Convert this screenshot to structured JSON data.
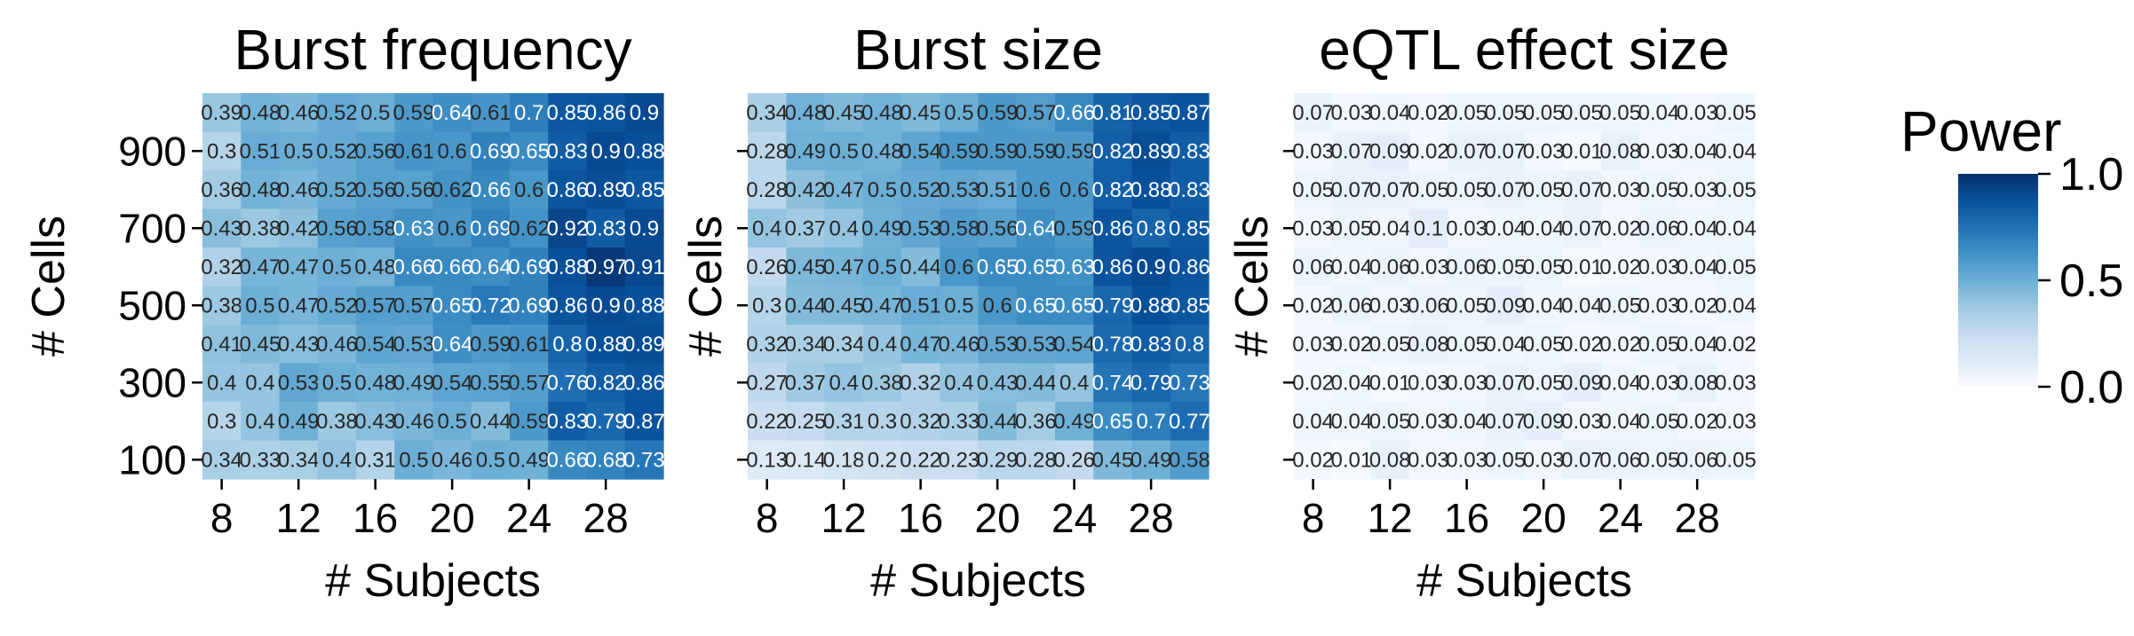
{
  "colorbar": {
    "title": "Power",
    "ticks": [
      {
        "value": 1.0,
        "label": "1.0"
      },
      {
        "value": 0.5,
        "label": "0.5"
      },
      {
        "value": 0.0,
        "label": "0.0"
      }
    ],
    "range": [
      0,
      1
    ],
    "colormap": [
      "#f7fbff",
      "#deebf7",
      "#c6dbef",
      "#9ecae1",
      "#6baed6",
      "#4292c6",
      "#2171b5",
      "#08519c",
      "#08306b"
    ]
  },
  "chart_data": [
    {
      "type": "heatmap",
      "title": "Burst frequency",
      "xlabel": "# Subjects",
      "ylabel": "# Cells",
      "x": [
        8,
        10,
        12,
        14,
        16,
        18,
        20,
        22,
        24,
        26,
        28,
        30
      ],
      "x_tick_labels": [
        "8",
        "12",
        "16",
        "20",
        "24",
        "28"
      ],
      "y": [
        1000,
        900,
        800,
        700,
        600,
        500,
        400,
        300,
        200,
        100
      ],
      "y_tick_labels": [
        "900",
        "700",
        "500",
        "300",
        "100"
      ],
      "values": [
        [
          0.39,
          0.48,
          0.46,
          0.52,
          0.5,
          0.59,
          0.64,
          0.61,
          0.7,
          0.85,
          0.86,
          0.9
        ],
        [
          0.3,
          0.51,
          0.5,
          0.52,
          0.56,
          0.61,
          0.6,
          0.69,
          0.65,
          0.83,
          0.9,
          0.88
        ],
        [
          0.36,
          0.48,
          0.46,
          0.52,
          0.56,
          0.56,
          0.62,
          0.66,
          0.6,
          0.86,
          0.89,
          0.85
        ],
        [
          0.43,
          0.38,
          0.42,
          0.56,
          0.58,
          0.63,
          0.6,
          0.69,
          0.62,
          0.92,
          0.83,
          0.9
        ],
        [
          0.32,
          0.47,
          0.47,
          0.5,
          0.48,
          0.66,
          0.66,
          0.64,
          0.69,
          0.88,
          0.97,
          0.91
        ],
        [
          0.38,
          0.5,
          0.47,
          0.52,
          0.57,
          0.57,
          0.65,
          0.72,
          0.69,
          0.86,
          0.9,
          0.88
        ],
        [
          0.41,
          0.45,
          0.43,
          0.46,
          0.54,
          0.53,
          0.64,
          0.59,
          0.61,
          0.8,
          0.88,
          0.89
        ],
        [
          0.4,
          0.4,
          0.53,
          0.5,
          0.48,
          0.49,
          0.54,
          0.55,
          0.57,
          0.76,
          0.82,
          0.86
        ],
        [
          0.3,
          0.4,
          0.49,
          0.38,
          0.43,
          0.46,
          0.5,
          0.44,
          0.59,
          0.83,
          0.79,
          0.87
        ],
        [
          0.34,
          0.33,
          0.34,
          0.4,
          0.31,
          0.5,
          0.46,
          0.5,
          0.49,
          0.66,
          0.68,
          0.73
        ]
      ],
      "value_labels": [
        [
          "0.39",
          "0.48",
          "0.46",
          "0.52",
          "0.5",
          "0.59",
          "0.64",
          "0.61",
          "0.7",
          "0.85",
          "0.86",
          "0.9"
        ],
        [
          "0.3",
          "0.51",
          "0.5",
          "0.52",
          "0.56",
          "0.61",
          "0.6",
          "0.69",
          "0.65",
          "0.83",
          "0.9",
          "0.88"
        ],
        [
          "0.36",
          "0.48",
          "0.46",
          "0.52",
          "0.56",
          "0.56",
          "0.62",
          "0.66",
          "0.6",
          "0.86",
          "0.89",
          "0.85"
        ],
        [
          "0.43",
          "0.38",
          "0.42",
          "0.56",
          "0.58",
          "0.63",
          "0.6",
          "0.69",
          "0.62",
          "0.92",
          "0.83",
          "0.9"
        ],
        [
          "0.32",
          "0.47",
          "0.47",
          "0.5",
          "0.48",
          "0.66",
          "0.66",
          "0.64",
          "0.69",
          "0.88",
          "0.97",
          "0.91"
        ],
        [
          "0.38",
          "0.5",
          "0.47",
          "0.52",
          "0.57",
          "0.57",
          "0.65",
          "0.72",
          "0.69",
          "0.86",
          "0.9",
          "0.88"
        ],
        [
          "0.41",
          "0.45",
          "0.43",
          "0.46",
          "0.54",
          "0.53",
          "0.64",
          "0.59",
          "0.61",
          "0.8",
          "0.88",
          "0.89"
        ],
        [
          "0.4",
          "0.4",
          "0.53",
          "0.5",
          "0.48",
          "0.49",
          "0.54",
          "0.55",
          "0.57",
          "0.76",
          "0.82",
          "0.86"
        ],
        [
          "0.3",
          "0.4",
          "0.49",
          "0.38",
          "0.43",
          "0.46",
          "0.5",
          "0.44",
          "0.59",
          "0.83",
          "0.79",
          "0.87"
        ],
        [
          "0.34",
          "0.33",
          "0.34",
          "0.4",
          "0.31",
          "0.5",
          "0.46",
          "0.5",
          "0.49",
          "0.66",
          "0.68",
          "0.73"
        ]
      ]
    },
    {
      "type": "heatmap",
      "title": "Burst size",
      "xlabel": "# Subjects",
      "ylabel": "# Cells",
      "x": [
        8,
        10,
        12,
        14,
        16,
        18,
        20,
        22,
        24,
        26,
        28,
        30
      ],
      "x_tick_labels": [
        "8",
        "12",
        "16",
        "20",
        "24",
        "28"
      ],
      "y": [
        1000,
        900,
        800,
        700,
        600,
        500,
        400,
        300,
        200,
        100
      ],
      "y_tick_labels": [
        "900",
        "700",
        "500",
        "300",
        "100"
      ],
      "values": [
        [
          0.34,
          0.48,
          0.45,
          0.48,
          0.45,
          0.5,
          0.59,
          0.57,
          0.66,
          0.81,
          0.85,
          0.87
        ],
        [
          0.28,
          0.49,
          0.5,
          0.48,
          0.54,
          0.59,
          0.59,
          0.59,
          0.59,
          0.82,
          0.89,
          0.83
        ],
        [
          0.28,
          0.42,
          0.47,
          0.5,
          0.52,
          0.53,
          0.51,
          0.6,
          0.6,
          0.82,
          0.88,
          0.83
        ],
        [
          0.4,
          0.37,
          0.4,
          0.49,
          0.53,
          0.58,
          0.56,
          0.64,
          0.59,
          0.86,
          0.8,
          0.85
        ],
        [
          0.26,
          0.45,
          0.47,
          0.5,
          0.44,
          0.6,
          0.65,
          0.65,
          0.63,
          0.86,
          0.9,
          0.86
        ],
        [
          0.3,
          0.44,
          0.45,
          0.47,
          0.51,
          0.5,
          0.6,
          0.65,
          0.65,
          0.79,
          0.88,
          0.85
        ],
        [
          0.32,
          0.34,
          0.34,
          0.4,
          0.47,
          0.46,
          0.53,
          0.53,
          0.54,
          0.78,
          0.83,
          0.8
        ],
        [
          0.27,
          0.37,
          0.4,
          0.38,
          0.32,
          0.4,
          0.43,
          0.44,
          0.4,
          0.74,
          0.79,
          0.73
        ],
        [
          0.22,
          0.25,
          0.31,
          0.3,
          0.32,
          0.33,
          0.44,
          0.36,
          0.49,
          0.65,
          0.7,
          0.77
        ],
        [
          0.13,
          0.14,
          0.18,
          0.2,
          0.22,
          0.23,
          0.29,
          0.28,
          0.26,
          0.45,
          0.49,
          0.58
        ]
      ],
      "value_labels": [
        [
          "0.34",
          "0.48",
          "0.45",
          "0.48",
          "0.45",
          "0.5",
          "0.59",
          "0.57",
          "0.66",
          "0.81",
          "0.85",
          "0.87"
        ],
        [
          "0.28",
          "0.49",
          "0.5",
          "0.48",
          "0.54",
          "0.59",
          "0.59",
          "0.59",
          "0.59",
          "0.82",
          "0.89",
          "0.83"
        ],
        [
          "0.28",
          "0.42",
          "0.47",
          "0.5",
          "0.52",
          "0.53",
          "0.51",
          "0.6",
          "0.6",
          "0.82",
          "0.88",
          "0.83"
        ],
        [
          "0.4",
          "0.37",
          "0.4",
          "0.49",
          "0.53",
          "0.58",
          "0.56",
          "0.64",
          "0.59",
          "0.86",
          "0.8",
          "0.85"
        ],
        [
          "0.26",
          "0.45",
          "0.47",
          "0.5",
          "0.44",
          "0.6",
          "0.65",
          "0.65",
          "0.63",
          "0.86",
          "0.9",
          "0.86"
        ],
        [
          "0.3",
          "0.44",
          "0.45",
          "0.47",
          "0.51",
          "0.5",
          "0.6",
          "0.65",
          "0.65",
          "0.79",
          "0.88",
          "0.85"
        ],
        [
          "0.32",
          "0.34",
          "0.34",
          "0.4",
          "0.47",
          "0.46",
          "0.53",
          "0.53",
          "0.54",
          "0.78",
          "0.83",
          "0.8"
        ],
        [
          "0.27",
          "0.37",
          "0.4",
          "0.38",
          "0.32",
          "0.4",
          "0.43",
          "0.44",
          "0.4",
          "0.74",
          "0.79",
          "0.73"
        ],
        [
          "0.22",
          "0.25",
          "0.31",
          "0.3",
          "0.32",
          "0.33",
          "0.44",
          "0.36",
          "0.49",
          "0.65",
          "0.7",
          "0.77"
        ],
        [
          "0.13",
          "0.14",
          "0.18",
          "0.2",
          "0.22",
          "0.23",
          "0.29",
          "0.28",
          "0.26",
          "0.45",
          "0.49",
          "0.58"
        ]
      ]
    },
    {
      "type": "heatmap",
      "title": "eQTL effect size",
      "xlabel": "# Subjects",
      "ylabel": "# Cells",
      "x": [
        8,
        10,
        12,
        14,
        16,
        18,
        20,
        22,
        24,
        26,
        28,
        30
      ],
      "x_tick_labels": [
        "8",
        "12",
        "16",
        "20",
        "24",
        "28"
      ],
      "y": [
        1000,
        900,
        800,
        700,
        600,
        500,
        400,
        300,
        200,
        100
      ],
      "y_tick_labels": [
        "900",
        "700",
        "500",
        "300",
        "100"
      ],
      "values": [
        [
          0.07,
          0.03,
          0.04,
          0.02,
          0.05,
          0.05,
          0.05,
          0.05,
          0.05,
          0.04,
          0.03,
          0.05
        ],
        [
          0.03,
          0.07,
          0.09,
          0.02,
          0.07,
          0.07,
          0.03,
          0.01,
          0.08,
          0.03,
          0.04,
          0.04
        ],
        [
          0.05,
          0.07,
          0.07,
          0.05,
          0.05,
          0.07,
          0.05,
          0.07,
          0.03,
          0.05,
          0.03,
          0.05
        ],
        [
          0.03,
          0.05,
          0.04,
          0.1,
          0.03,
          0.04,
          0.04,
          0.07,
          0.02,
          0.06,
          0.04,
          0.04
        ],
        [
          0.06,
          0.04,
          0.06,
          0.03,
          0.06,
          0.05,
          0.05,
          0.01,
          0.02,
          0.03,
          0.04,
          0.05
        ],
        [
          0.02,
          0.06,
          0.03,
          0.06,
          0.05,
          0.09,
          0.04,
          0.04,
          0.05,
          0.03,
          0.02,
          0.04
        ],
        [
          0.03,
          0.02,
          0.05,
          0.08,
          0.05,
          0.04,
          0.05,
          0.02,
          0.02,
          0.05,
          0.04,
          0.02
        ],
        [
          0.02,
          0.04,
          0.01,
          0.03,
          0.03,
          0.07,
          0.05,
          0.09,
          0.04,
          0.03,
          0.08,
          0.03
        ],
        [
          0.04,
          0.04,
          0.05,
          0.03,
          0.04,
          0.07,
          0.09,
          0.03,
          0.04,
          0.05,
          0.02,
          0.03
        ],
        [
          0.02,
          0.01,
          0.08,
          0.03,
          0.03,
          0.05,
          0.03,
          0.07,
          0.06,
          0.05,
          0.06,
          0.05
        ]
      ],
      "value_labels": [
        [
          "0.07",
          "0.03",
          "0.04",
          "0.02",
          "0.05",
          "0.05",
          "0.05",
          "0.05",
          "0.05",
          "0.04",
          "0.03",
          "0.05"
        ],
        [
          "0.03",
          "0.07",
          "0.09",
          "0.02",
          "0.07",
          "0.07",
          "0.03",
          "0.01",
          "0.08",
          "0.03",
          "0.04",
          "0.04"
        ],
        [
          "0.05",
          "0.07",
          "0.07",
          "0.05",
          "0.05",
          "0.07",
          "0.05",
          "0.07",
          "0.03",
          "0.05",
          "0.03",
          "0.05"
        ],
        [
          "0.03",
          "0.05",
          "0.04",
          "0.1",
          "0.03",
          "0.04",
          "0.04",
          "0.07",
          "0.02",
          "0.06",
          "0.04",
          "0.04"
        ],
        [
          "0.06",
          "0.04",
          "0.06",
          "0.03",
          "0.06",
          "0.05",
          "0.05",
          "0.01",
          "0.02",
          "0.03",
          "0.04",
          "0.05"
        ],
        [
          "0.02",
          "0.06",
          "0.03",
          "0.06",
          "0.05",
          "0.09",
          "0.04",
          "0.04",
          "0.05",
          "0.03",
          "0.02",
          "0.04"
        ],
        [
          "0.03",
          "0.02",
          "0.05",
          "0.08",
          "0.05",
          "0.04",
          "0.05",
          "0.02",
          "0.02",
          "0.05",
          "0.04",
          "0.02"
        ],
        [
          "0.02",
          "0.04",
          "0.01",
          "0.03",
          "0.03",
          "0.07",
          "0.05",
          "0.09",
          "0.04",
          "0.03",
          "0.08",
          "0.03"
        ],
        [
          "0.04",
          "0.04",
          "0.05",
          "0.03",
          "0.04",
          "0.07",
          "0.09",
          "0.03",
          "0.04",
          "0.05",
          "0.02",
          "0.03"
        ],
        [
          "0.02",
          "0.01",
          "0.08",
          "0.03",
          "0.03",
          "0.05",
          "0.03",
          "0.07",
          "0.06",
          "0.05",
          "0.06",
          "0.05"
        ]
      ]
    }
  ]
}
